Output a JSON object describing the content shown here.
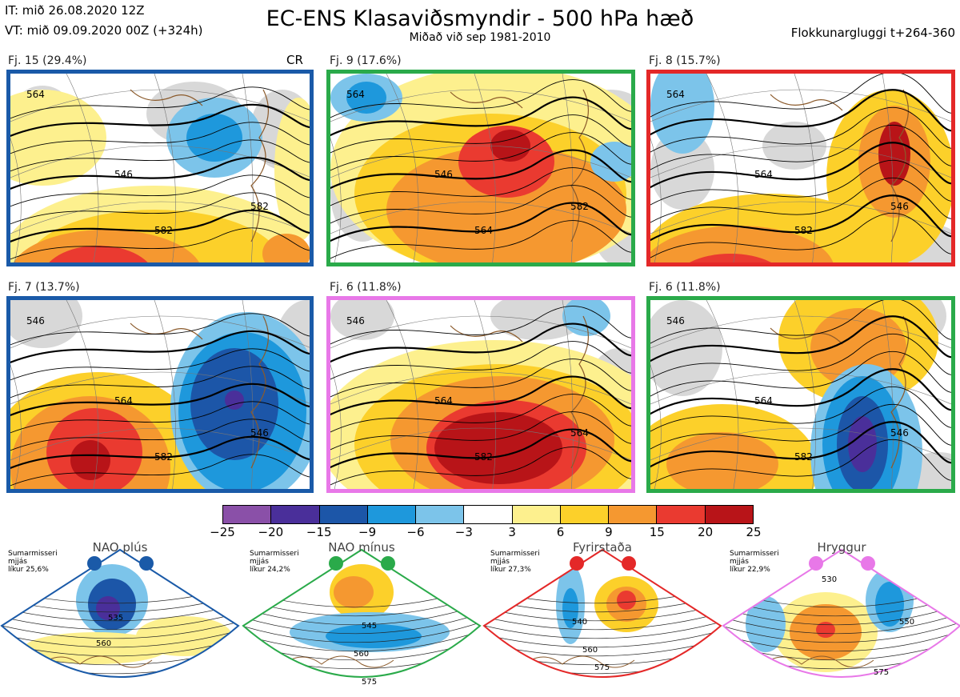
{
  "header": {
    "it": "IT: mið 26.08.2020 12Z",
    "vt": "VT: mið 09.09.2020 00Z  (+324h)",
    "title": "EC-ENS Klasaviðsmyndir - 500 hPa hæð",
    "subtitle": "Miðað við sep 1981-2010",
    "window": "Flokkunargluggi t+264-360"
  },
  "colors": {
    "nao_plus": "#1a5aa8",
    "nao_minus": "#2aaa4a",
    "blocking": "#e42828",
    "ridge": "#e878e8"
  },
  "panels": [
    {
      "label": "Fj. 15 (29.4%)",
      "regime": "nao_plus",
      "cr": "CR",
      "contours": [
        "564",
        "546",
        "582",
        "582"
      ]
    },
    {
      "label": "Fj. 9 (17.6%)",
      "regime": "nao_minus",
      "cr": "",
      "contours": [
        "564",
        "546",
        "564",
        "582"
      ]
    },
    {
      "label": "Fj. 8 (15.7%)",
      "regime": "blocking",
      "cr": "",
      "contours": [
        "564",
        "564",
        "582",
        "546"
      ]
    },
    {
      "label": "Fj. 7 (13.7%)",
      "regime": "nao_plus",
      "cr": "",
      "contours": [
        "546",
        "564",
        "582",
        "546"
      ]
    },
    {
      "label": "Fj. 6 (11.8%)",
      "regime": "ridge",
      "cr": "",
      "contours": [
        "546",
        "564",
        "582",
        "564"
      ]
    },
    {
      "label": "Fj. 6 (11.8%)",
      "regime": "nao_minus",
      "cr": "",
      "contours": [
        "546",
        "564",
        "582",
        "546"
      ]
    }
  ],
  "chart_data": {
    "type": "heatmap",
    "title": "EC-ENS Klasaviðsmyndir - 500 hPa hæð",
    "subtitle": "Miðað við sep 1981-2010",
    "colorbar": {
      "ticks": [
        "−25",
        "−20",
        "−15",
        "−9",
        "−6",
        "−3",
        "3",
        "6",
        "9",
        "15",
        "20",
        "25"
      ],
      "bins": [
        {
          "from": -25,
          "to": -20,
          "color": "#8a50a8"
        },
        {
          "from": -20,
          "to": -15,
          "color": "#4a2f9a"
        },
        {
          "from": -15,
          "to": -9,
          "color": "#1c56a8"
        },
        {
          "from": -9,
          "to": -6,
          "color": "#1e98dc"
        },
        {
          "from": -6,
          "to": -3,
          "color": "#7cc4ea"
        },
        {
          "from": -3,
          "to": 3,
          "color": "#ffffff"
        },
        {
          "from": 3,
          "to": 6,
          "color": "#fdf08e"
        },
        {
          "from": 6,
          "to": 9,
          "color": "#fcd02a"
        },
        {
          "from": 9,
          "to": 15,
          "color": "#f59830"
        },
        {
          "from": 15,
          "to": 20,
          "color": "#ea3a30"
        },
        {
          "from": 20,
          "to": 25,
          "color": "#b81418"
        }
      ]
    },
    "clusters": [
      {
        "label": "Fj. 15 (29.4%)",
        "members": 15,
        "percent": 29.4
      },
      {
        "label": "Fj. 9 (17.6%)",
        "members": 9,
        "percent": 17.6
      },
      {
        "label": "Fj. 8 (15.7%)",
        "members": 8,
        "percent": 15.7
      },
      {
        "label": "Fj. 7 (13.7%)",
        "members": 7,
        "percent": 13.7
      },
      {
        "label": "Fj. 6 (11.8%)",
        "members": 6,
        "percent": 11.8
      },
      {
        "label": "Fj. 6 (11.8%)",
        "members": 6,
        "percent": 11.8
      }
    ]
  },
  "regimes": [
    {
      "key": "nao_plus",
      "title": "NAO plús",
      "season": "Sumarmisseri",
      "kind": "mjjás",
      "prob": "líkur 25,6%",
      "contours": [
        "535",
        "560"
      ]
    },
    {
      "key": "nao_minus",
      "title": "NAO mínus",
      "season": "Sumarmisseri",
      "kind": "mjjás",
      "prob": "líkur 24,2%",
      "contours": [
        "545",
        "560",
        "575"
      ]
    },
    {
      "key": "blocking",
      "title": "Fyrirstaða",
      "season": "Sumarmisseri",
      "kind": "mjjás",
      "prob": "líkur 27,3%",
      "contours": [
        "540",
        "560",
        "575"
      ]
    },
    {
      "key": "ridge",
      "title": "Hryggur",
      "season": "Sumarmisseri",
      "kind": "mjjás",
      "prob": "líkur 22,9%",
      "contours": [
        "530",
        "550",
        "575"
      ]
    }
  ]
}
